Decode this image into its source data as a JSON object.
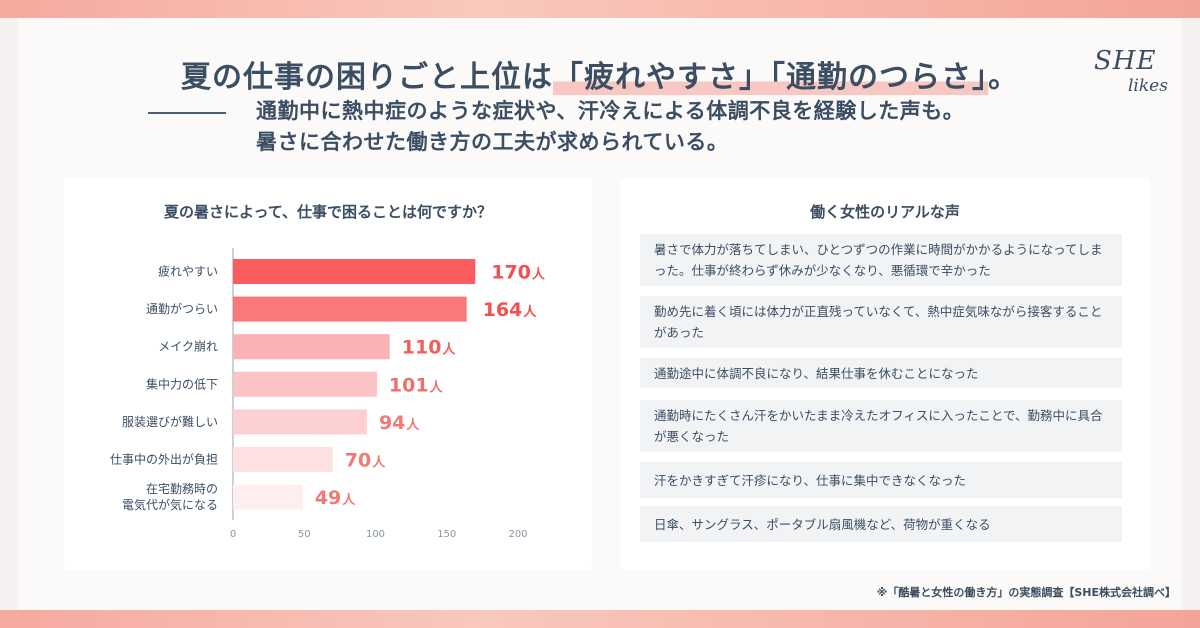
{
  "title": {
    "prefix": "夏の仕事の困りごと上位は",
    "highlight": "「疲れやすさ」「通勤のつらさ」",
    "suffix": "。"
  },
  "subtitle": {
    "line1": "通勤中に熱中症のような症状や、汗冷えによる体調不良を経験した声も。",
    "line2": "暑さに合わせた働き方の工夫が求められている。"
  },
  "logo": {
    "she": "SHE",
    "likes": "likes"
  },
  "question": "夏の暑さによって、仕事で困ることは何ですか？",
  "voices_title": "働く女性のリアルな声",
  "voices": [
    "暑さで体力が落ちてしまい、ひとつずつの作業に時間がかかるようになってしまった。仕事が終わらず休みが少なくなり、悪循環で辛かった",
    "勤め先に着く頃には体力が正直残っていなくて、熱中症気味ながら接客することがあった",
    "通勤途中に体調不良になり、結果仕事を休むことになった",
    "通勤時にたくさん汗をかいたまま冷えたオフィスに入ったことで、勤務中に具合が悪くなった",
    "汗をかきすぎて汗疹になり、仕事に集中できなくなった",
    "日傘、サングラス、ポータブル扇風機など、荷物が重くなる"
  ],
  "footnote": "※「酷暑と女性の働き方」の実態調査【SHE株式会社調べ】",
  "chart_data": {
    "type": "bar",
    "orientation": "horizontal",
    "title": "夏の暑さによって、仕事で困ることは何ですか？",
    "categories": [
      "疲れやすい",
      "通勤がつらい",
      "メイク崩れ",
      "集中力の低下",
      "服装選びが難しい",
      "仕事中の外出が負担",
      "在宅勤務時の\n電気代が気になる"
    ],
    "values": [
      170,
      164,
      110,
      101,
      94,
      70,
      49
    ],
    "unit": "人",
    "xlim": [
      0,
      200
    ],
    "xticks": [
      "0",
      "50",
      "100",
      "150",
      "200"
    ],
    "grid": false,
    "colors": [
      "#fa5c5f",
      "#f9797a",
      "#fbb2b4",
      "#fcc3c5",
      "#fcd0d2",
      "#fde0e1",
      "#feeeee"
    ],
    "label_colors": [
      "#f0504f",
      "#f0504f",
      "#f05e5a",
      "#f06e68",
      "#f07a74",
      "#f07a74",
      "#f07a74"
    ]
  }
}
